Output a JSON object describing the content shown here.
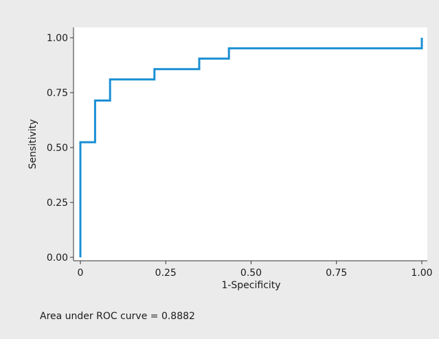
{
  "chart_data": {
    "type": "line",
    "title": "",
    "xlabel": "1-Specificity",
    "ylabel": "Sensitivity",
    "xlim": [
      0,
      1
    ],
    "ylim": [
      0,
      1
    ],
    "x_ticks": [
      0,
      0.25,
      0.5,
      0.75,
      1
    ],
    "x_tick_labels": [
      "0",
      "0.25",
      "0.50",
      "0.75",
      "1.00"
    ],
    "y_ticks": [
      0,
      0.25,
      0.5,
      0.75,
      1
    ],
    "y_tick_labels": [
      "0.00",
      "0.25",
      "0.50",
      "0.75",
      "1.00"
    ],
    "grid": false,
    "series": [
      {
        "line_color": "#1a8fd4",
        "x": [
          0,
          0,
          0.043,
          0.043,
          0.087,
          0.087,
          0.217,
          0.217,
          0.348,
          0.348,
          0.435,
          0.435,
          1.0,
          1.0
        ],
        "y": [
          0,
          0.524,
          0.524,
          0.714,
          0.714,
          0.81,
          0.81,
          0.857,
          0.857,
          0.905,
          0.905,
          0.952,
          0.952,
          1.0
        ]
      }
    ],
    "annotation": "Area under ROC curve = 0.8882"
  },
  "colors": {
    "background": "#ebebeb",
    "plot_background": "#ffffff",
    "axis": "#333333",
    "curve": "#1a8fd4"
  }
}
